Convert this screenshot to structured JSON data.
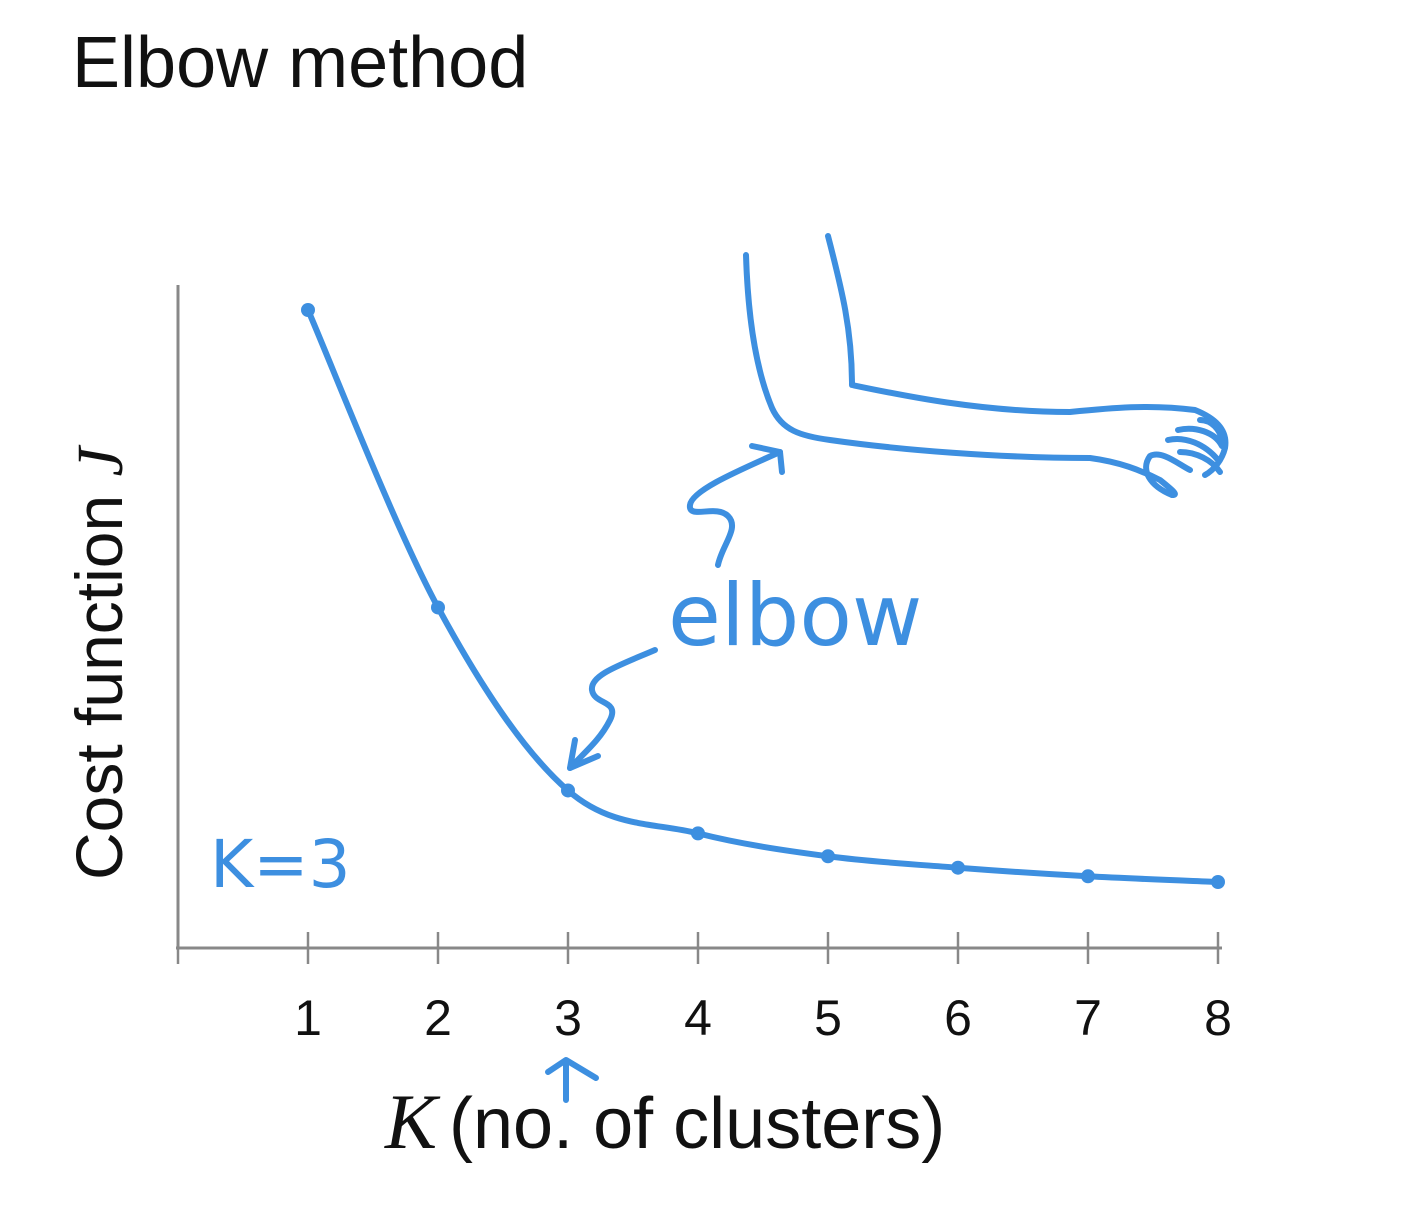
{
  "title": "Elbow method",
  "colors": {
    "ink": "#3d8fe0",
    "axis": "#888888",
    "text": "#111111"
  },
  "chart_data": {
    "type": "line",
    "title": "Elbow method",
    "xlabel_var": "K",
    "xlabel": "(no. of clusters)",
    "ylabel": "Cost function ",
    "ylabel_var": "J",
    "x": [
      1,
      2,
      3,
      4,
      5,
      6,
      7,
      8
    ],
    "tick_labels": [
      "1",
      "2",
      "3",
      "4",
      "5",
      "6",
      "7",
      "8"
    ],
    "series": [
      {
        "values": [
          1.0,
          0.48,
          0.16,
          0.085,
          0.045,
          0.025,
          0.01,
          0.0
        ]
      }
    ],
    "xlim": [
      0,
      8
    ],
    "grid": false,
    "annotations": {
      "elbow": "elbow",
      "k_choice": "K=3",
      "arrow_to_x": 3
    }
  }
}
